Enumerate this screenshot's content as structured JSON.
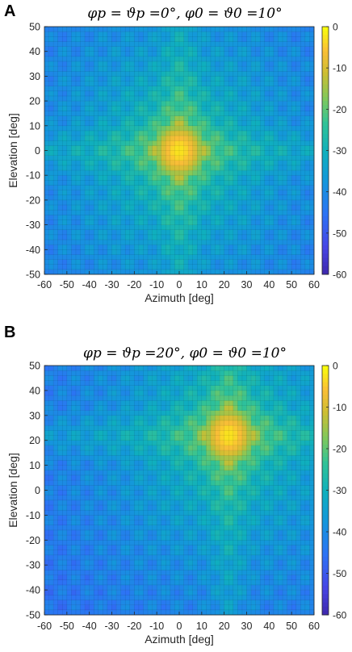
{
  "panels": [
    {
      "letter": "A",
      "title": "φp = ϑp =0°, φ0 = ϑ0 =10°",
      "chart_data": {
        "type": "heatmap",
        "xlabel": "Azimuth [deg]",
        "ylabel": "Elevation [deg]",
        "xlim": [
          -60,
          60
        ],
        "ylim": [
          -50,
          50
        ],
        "xticks": [
          -60,
          -50,
          -40,
          -30,
          -20,
          -10,
          0,
          10,
          20,
          30,
          40,
          50,
          60
        ],
        "yticks": [
          -50,
          -40,
          -30,
          -20,
          -10,
          0,
          10,
          20,
          30,
          40,
          50
        ],
        "colorbar": {
          "range": [
            -60,
            0
          ],
          "ticks": [
            0,
            -10,
            -20,
            -30,
            -40,
            -50,
            -60
          ],
          "colormap": "parula"
        },
        "main_lobe": {
          "azimuth": 0,
          "elevation": 0,
          "peak_db": 0,
          "width_deg": 20
        },
        "grid_step_deg": 1,
        "grid": true
      }
    },
    {
      "letter": "B",
      "title": "φp = ϑp =20°, φ0 = ϑ0 =10°",
      "chart_data": {
        "type": "heatmap",
        "xlabel": "Azimuth [deg]",
        "ylabel": "Elevation [deg]",
        "xlim": [
          -60,
          60
        ],
        "ylim": [
          -50,
          50
        ],
        "xticks": [
          -60,
          -50,
          -40,
          -30,
          -20,
          -10,
          0,
          10,
          20,
          30,
          40,
          50,
          60
        ],
        "yticks": [
          -50,
          -40,
          -30,
          -20,
          -10,
          0,
          10,
          20,
          30,
          40,
          50
        ],
        "colorbar": {
          "range": [
            -60,
            0
          ],
          "ticks": [
            0,
            -10,
            -20,
            -30,
            -40,
            -50,
            -60
          ],
          "colormap": "parula"
        },
        "main_lobe": {
          "azimuth": 22,
          "elevation": 22,
          "peak_db": 0,
          "width_deg": 20
        },
        "grid_step_deg": 1,
        "grid": true
      }
    }
  ],
  "colors": {
    "parula_low": "#3e26a8",
    "parula_mid": "#20b2aa",
    "parula_high": "#f9fb0e"
  }
}
